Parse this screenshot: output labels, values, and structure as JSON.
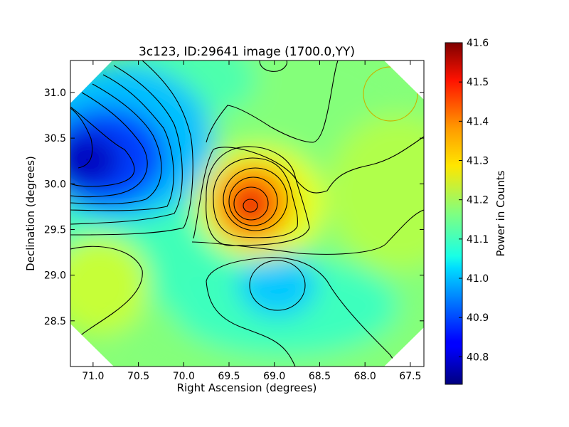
{
  "chart_data": {
    "type": "heatmap",
    "title": "3c123, ID:29641 image (1700.0,YY)",
    "xlabel": "Right Ascension (degrees)",
    "ylabel": "Declination (degrees)",
    "xlim": [
      71.25,
      67.35
    ],
    "ylim": [
      28.0,
      31.35
    ],
    "x_ticks": [
      "71.0",
      "70.5",
      "70.0",
      "69.5",
      "69.0",
      "68.5",
      "68.0",
      "67.5"
    ],
    "x_tick_values": [
      71.0,
      70.5,
      70.0,
      69.5,
      69.0,
      68.5,
      68.0,
      67.5
    ],
    "y_ticks": [
      "28.5",
      "29.0",
      "29.5",
      "30.0",
      "30.5",
      "31.0"
    ],
    "y_tick_values": [
      28.5,
      29.0,
      29.5,
      30.0,
      30.5,
      31.0
    ],
    "colorbar": {
      "label": "Power in Counts",
      "min": 40.73,
      "max": 41.6,
      "tick_labels": [
        "40.8",
        "40.9",
        "41.0",
        "41.1",
        "41.2",
        "41.3",
        "41.4",
        "41.5",
        "41.6"
      ],
      "tick_values": [
        40.8,
        40.9,
        41.0,
        41.1,
        41.2,
        41.3,
        41.4,
        41.5,
        41.6
      ],
      "colormap": "jet"
    },
    "background_level": 41.15,
    "features": [
      {
        "kind": "peak",
        "ra": 69.23,
        "dec": 29.75,
        "value": 41.58
      },
      {
        "kind": "trough",
        "ra": 71.1,
        "dec": 30.2,
        "value": 40.73
      },
      {
        "kind": "trough",
        "ra": 69.05,
        "dec": 28.88,
        "value": 40.98
      }
    ],
    "beam_marker": {
      "ra": 67.73,
      "dec": 30.97,
      "color": "#c8b400"
    },
    "grid": false
  }
}
